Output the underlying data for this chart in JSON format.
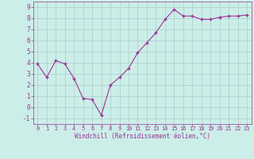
{
  "x": [
    0,
    1,
    2,
    3,
    4,
    5,
    6,
    7,
    8,
    9,
    10,
    11,
    12,
    13,
    14,
    15,
    16,
    17,
    18,
    19,
    20,
    21,
    22,
    23
  ],
  "y": [
    3.9,
    2.7,
    4.2,
    3.9,
    2.6,
    0.8,
    0.7,
    -0.7,
    2.0,
    2.7,
    3.5,
    4.9,
    5.8,
    6.7,
    7.9,
    8.8,
    8.2,
    8.2,
    7.9,
    7.9,
    8.1,
    8.2,
    8.2,
    8.3
  ],
  "line_color": "#993399",
  "marker": "+",
  "bg_color": "#cceee8",
  "grid_color": "#aacccc",
  "xlabel": "Windchill (Refroidissement éolien,°C)",
  "xlabel_color": "#993399",
  "tick_color": "#993399",
  "xlim": [
    -0.5,
    23.5
  ],
  "ylim": [
    -1.5,
    9.5
  ],
  "yticks": [
    -1,
    0,
    1,
    2,
    3,
    4,
    5,
    6,
    7,
    8,
    9
  ],
  "xticks": [
    0,
    1,
    2,
    3,
    4,
    5,
    6,
    7,
    8,
    9,
    10,
    11,
    12,
    13,
    14,
    15,
    16,
    17,
    18,
    19,
    20,
    21,
    22,
    23
  ],
  "figsize": [
    3.2,
    2.0
  ],
  "dpi": 100
}
